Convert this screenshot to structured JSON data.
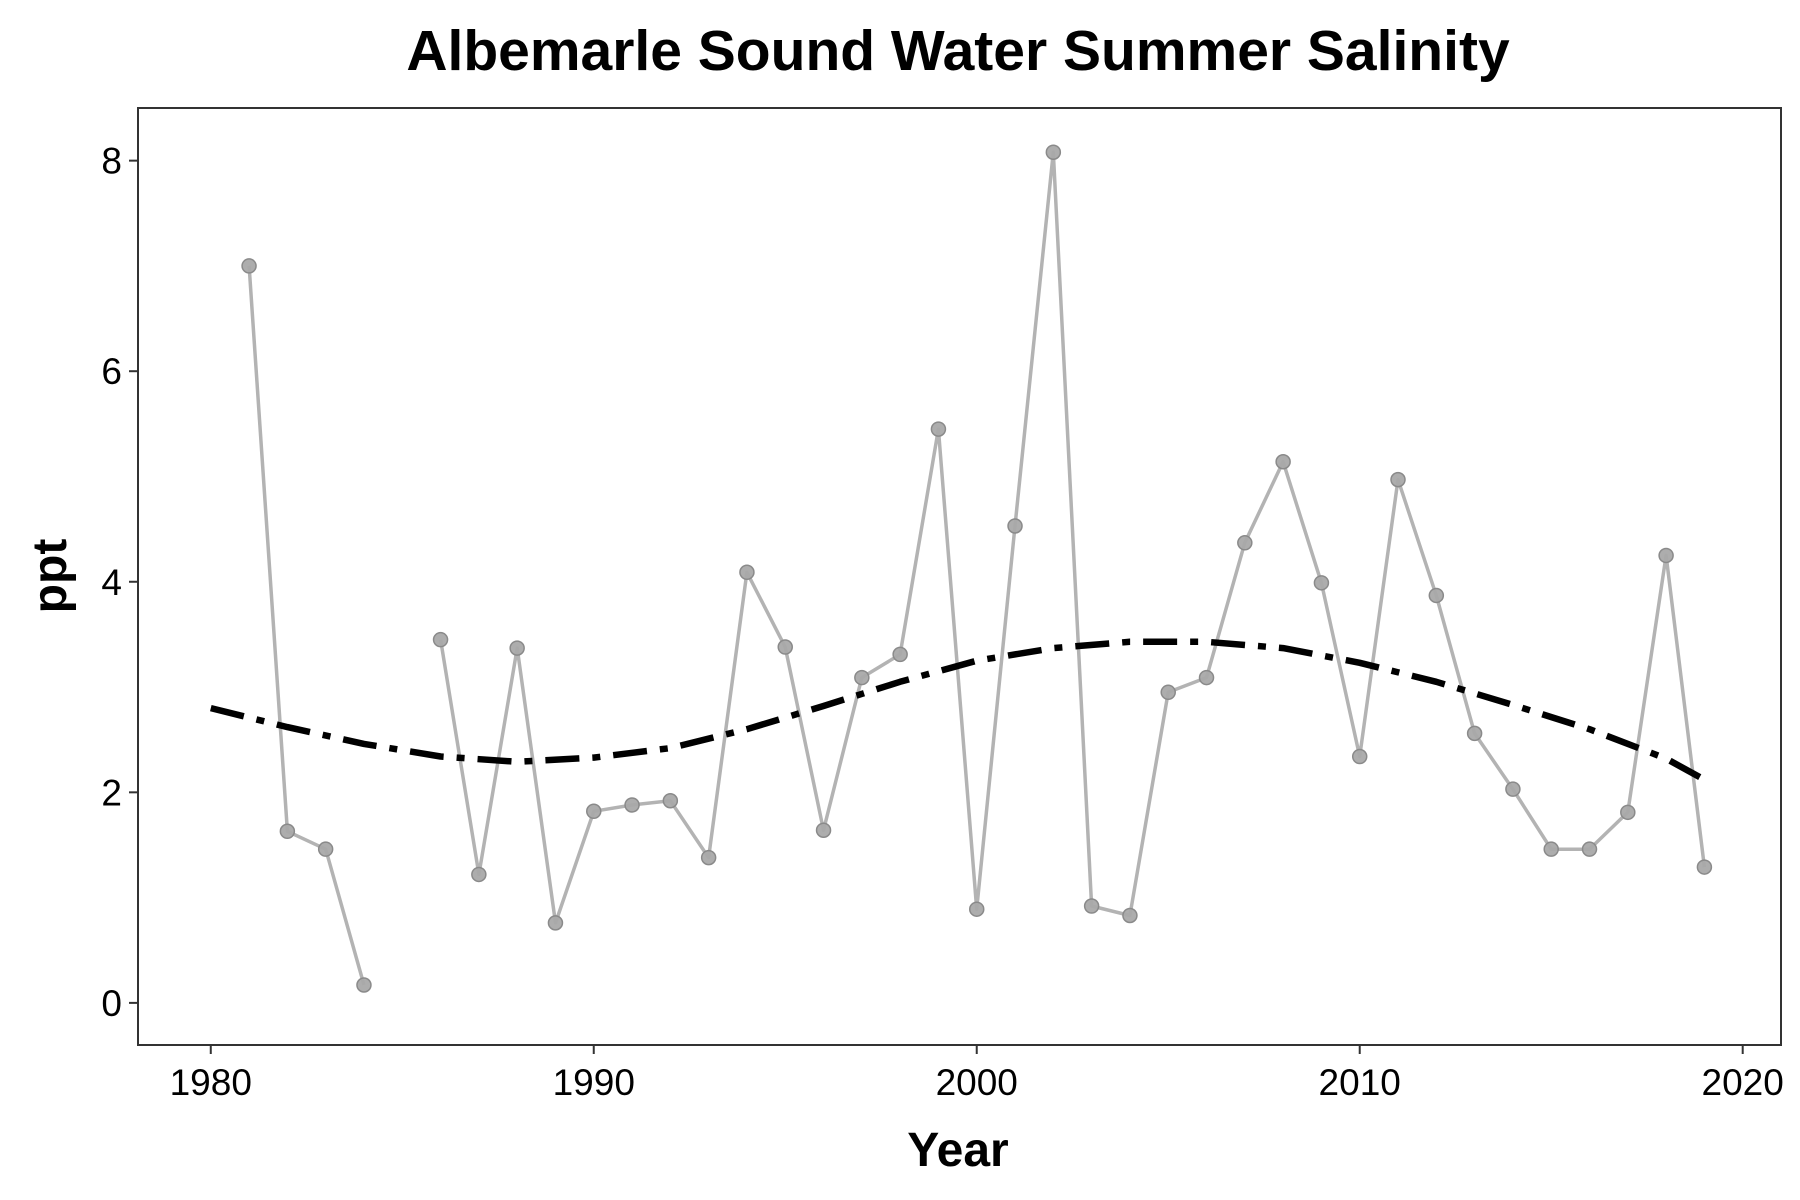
{
  "chart_data": {
    "type": "line",
    "title": "Albemarle Sound Water Summer Salinity",
    "xlabel": "Year",
    "ylabel": "ppt",
    "xlim": [
      1978.1,
      2021.0
    ],
    "ylim": [
      -0.4,
      8.5
    ],
    "x_ticks": [
      1980,
      1990,
      2000,
      2010,
      2020
    ],
    "y_ticks": [
      0,
      2,
      4,
      6,
      8
    ],
    "grid": false,
    "legend": "none",
    "series": [
      {
        "style": "observed",
        "color": "#b3b3b3",
        "marker": "circle",
        "segments": [
          [
            [
              1981,
              7.0
            ],
            [
              1982,
              1.63
            ],
            [
              1983,
              1.46
            ],
            [
              1984,
              0.17
            ]
          ],
          [
            [
              1986,
              3.45
            ],
            [
              1987,
              1.22
            ],
            [
              1988,
              3.37
            ],
            [
              1989,
              0.76
            ],
            [
              1990,
              1.82
            ],
            [
              1991,
              1.88
            ],
            [
              1992,
              1.92
            ],
            [
              1993,
              1.38
            ],
            [
              1994,
              4.09
            ],
            [
              1995,
              3.38
            ],
            [
              1996,
              1.64
            ],
            [
              1997,
              3.09
            ],
            [
              1998,
              3.31
            ],
            [
              1999,
              5.45
            ],
            [
              2000,
              0.89
            ],
            [
              2001,
              4.53
            ],
            [
              2002,
              8.08
            ],
            [
              2003,
              0.92
            ],
            [
              2004,
              0.83
            ],
            [
              2005,
              2.95
            ],
            [
              2006,
              3.09
            ],
            [
              2007,
              4.37
            ],
            [
              2008,
              5.14
            ],
            [
              2009,
              3.99
            ],
            [
              2010,
              2.34
            ],
            [
              2011,
              4.97
            ],
            [
              2012,
              3.87
            ],
            [
              2013,
              2.56
            ],
            [
              2014,
              2.03
            ],
            [
              2015,
              1.46
            ],
            [
              2016,
              1.46
            ],
            [
              2017,
              1.81
            ],
            [
              2018,
              4.25
            ],
            [
              2019,
              1.29
            ]
          ]
        ]
      },
      {
        "style": "trend",
        "color": "#000000",
        "line": "dashdot",
        "points": [
          [
            1980,
            2.8
          ],
          [
            1982,
            2.62
          ],
          [
            1984,
            2.46
          ],
          [
            1986,
            2.34
          ],
          [
            1988,
            2.29
          ],
          [
            1990,
            2.33
          ],
          [
            1992,
            2.42
          ],
          [
            1994,
            2.6
          ],
          [
            1996,
            2.82
          ],
          [
            1998,
            3.05
          ],
          [
            2000,
            3.25
          ],
          [
            2002,
            3.37
          ],
          [
            2004,
            3.43
          ],
          [
            2006,
            3.43
          ],
          [
            2008,
            3.37
          ],
          [
            2010,
            3.23
          ],
          [
            2012,
            3.05
          ],
          [
            2014,
            2.83
          ],
          [
            2016,
            2.6
          ],
          [
            2018,
            2.32
          ],
          [
            2019,
            2.12
          ]
        ]
      }
    ]
  }
}
